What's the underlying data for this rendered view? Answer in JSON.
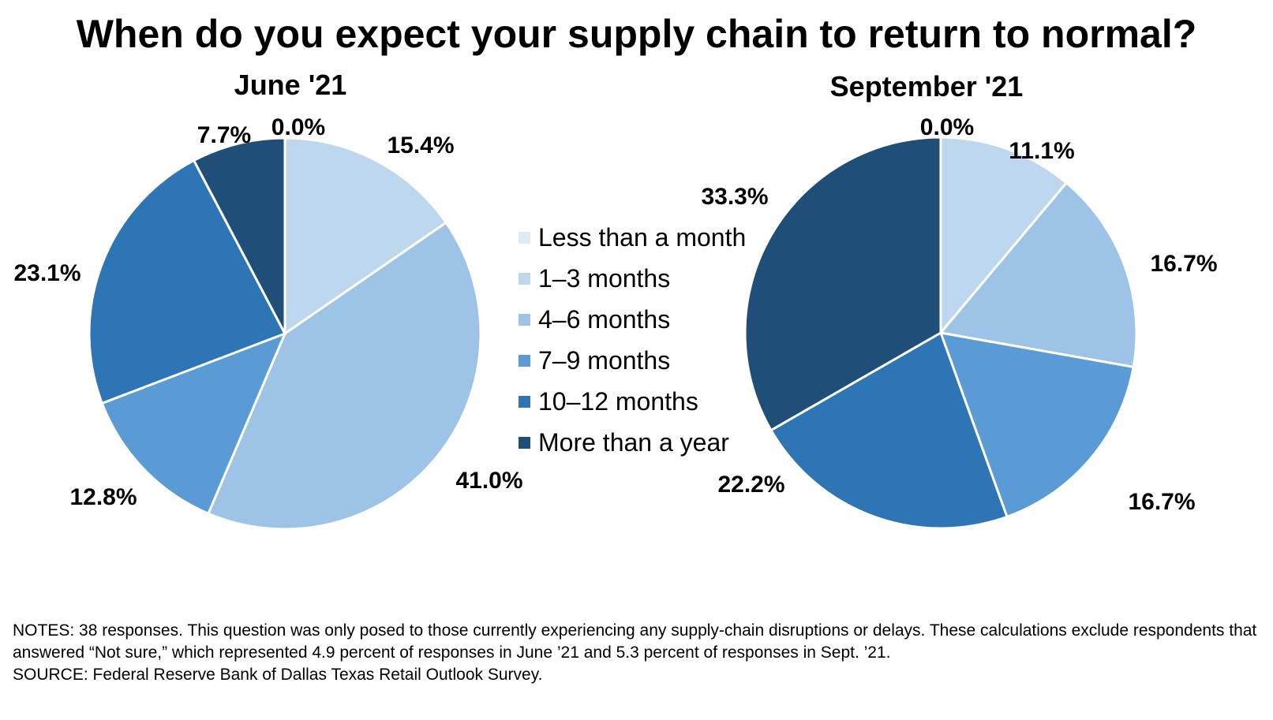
{
  "title": "When do you expect your supply chain to return to normal?",
  "chart_data": [
    {
      "type": "pie",
      "title": "June '21",
      "categories": [
        "Less than a month",
        "1–3 months",
        "4–6 months",
        "7–9 months",
        "10–12 months",
        "More than a year"
      ],
      "values": [
        0.0,
        15.4,
        41.0,
        12.8,
        23.1,
        7.7
      ],
      "labels": [
        "0.0%",
        "15.4%",
        "41.0%",
        "12.8%",
        "23.1%",
        "7.7%"
      ]
    },
    {
      "type": "pie",
      "title": "September '21",
      "categories": [
        "Less than a month",
        "1–3 months",
        "4–6 months",
        "7–9 months",
        "10–12 months",
        "More than a year"
      ],
      "values": [
        0.0,
        11.1,
        16.7,
        16.7,
        22.2,
        33.3
      ],
      "labels": [
        "0.0%",
        "11.1%",
        "16.7%",
        "16.7%",
        "22.2%",
        "33.3%"
      ]
    }
  ],
  "legend": {
    "items": [
      {
        "label": "Less than a month",
        "color": "#deebf7"
      },
      {
        "label": "1–3 months",
        "color": "#bdd7ee"
      },
      {
        "label": "4–6 months",
        "color": "#9dc3e6"
      },
      {
        "label": "7–9 months",
        "color": "#5b9bd5"
      },
      {
        "label": "10–12 months",
        "color": "#2e75b6"
      },
      {
        "label": "More than a year",
        "color": "#1f4e79"
      }
    ]
  },
  "notes": {
    "line1": "NOTES: 38 responses. This question was only posed to those currently experiencing any supply-chain disruptions or delays. These calculations exclude respondents that answered “Not sure,” which represented 4.9 percent of responses in June ’21 and 5.3 percent of responses in Sept. ’21.",
    "line2": "SOURCE: Federal Reserve Bank of Dallas Texas Retail Outlook Survey."
  }
}
